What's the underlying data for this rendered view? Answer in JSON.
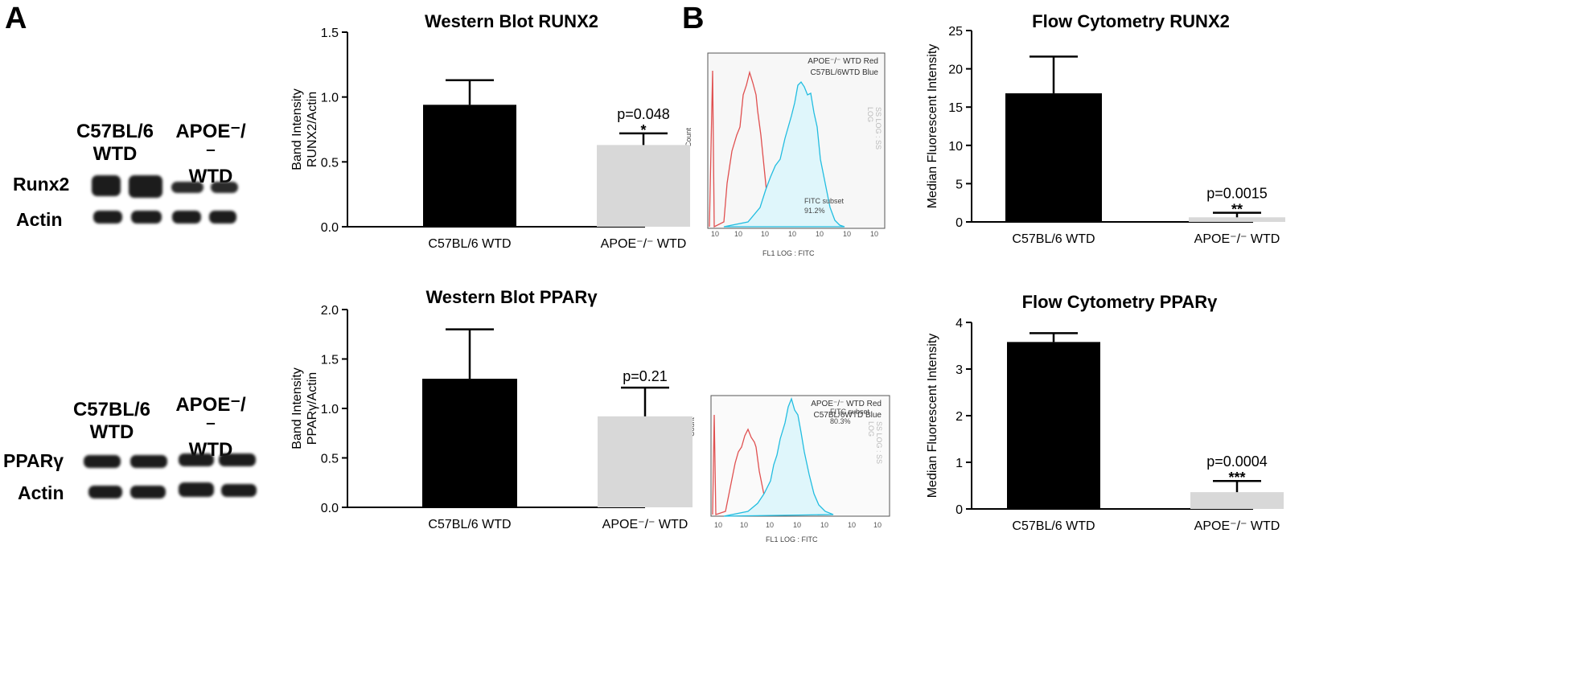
{
  "panels": {
    "a": "A",
    "b": "B"
  },
  "blots": [
    {
      "groups": [
        "C57BL/6\nWTD",
        "APOE⁻/⁻\nWTD"
      ],
      "rows": [
        "Runx2",
        "Actin"
      ]
    },
    {
      "groups": [
        "C57BL/6\nWTD",
        "APOE⁻/⁻\nWTD"
      ],
      "rows": [
        "PPARγ",
        "Actin"
      ]
    }
  ],
  "flow": [
    {
      "legend": [
        "APOE⁻/⁻ WTD Red",
        "C57BL/6WTD Blue"
      ],
      "subset": [
        "FITC subset",
        "91.2%"
      ],
      "ylabel": "Count",
      "xlabel": "FL1 LOG : FITC",
      "right_label": "SS LOG : SS LOG"
    },
    {
      "legend": [
        "APOE⁻/⁻ WTD Red",
        "C57BL/6WTD Blue"
      ],
      "subset": [
        "FITC subset",
        "80.3%"
      ],
      "ylabel": "Count",
      "xlabel": "FL1 LOG : FITC",
      "right_label": "SS LOG : SS LOG"
    }
  ],
  "chart_data": [
    {
      "type": "bar",
      "title": "Western Blot RUNX2",
      "ylabel": [
        "Band Intensity",
        "RUNX2/Actin"
      ],
      "categories": [
        "C57BL/6 WTD",
        "APOE⁻/⁻ WTD"
      ],
      "values": [
        0.94,
        0.63
      ],
      "errors": [
        0.19,
        0.09
      ],
      "colors": [
        "#000000",
        "#d8d8d8"
      ],
      "ylim": [
        0,
        1.5
      ],
      "yticks": [
        0,
        0.5,
        1.0,
        1.5
      ],
      "ytick_labels": [
        "0.0",
        "0.5",
        "1.0",
        "1.5"
      ],
      "annotation": {
        "index": 1,
        "pvalue": "p=0.048",
        "stars": "*"
      }
    },
    {
      "type": "bar",
      "title": "Flow Cytometry RUNX2",
      "ylabel": [
        "Median Fluorescent Intensity"
      ],
      "categories": [
        "C57BL/6 WTD",
        "APOE⁻/⁻ WTD"
      ],
      "values": [
        16.8,
        0.6
      ],
      "errors": [
        4.8,
        0.6
      ],
      "colors": [
        "#000000",
        "#d8d8d8"
      ],
      "ylim": [
        0,
        25
      ],
      "yticks": [
        0,
        5,
        10,
        15,
        20,
        25
      ],
      "ytick_labels": [
        "0",
        "5",
        "10",
        "15",
        "20",
        "25"
      ],
      "annotation": {
        "index": 1,
        "pvalue": "p=0.0015",
        "stars": "**"
      }
    },
    {
      "type": "bar",
      "title": "Western Blot PPARγ",
      "ylabel": [
        "Band Intensity",
        "PPARγ/Actin"
      ],
      "categories": [
        "C57BL/6 WTD",
        "APOE⁻/⁻ WTD"
      ],
      "values": [
        1.3,
        0.92
      ],
      "errors": [
        0.5,
        0.29
      ],
      "colors": [
        "#000000",
        "#d8d8d8"
      ],
      "ylim": [
        0,
        2.0
      ],
      "yticks": [
        0,
        0.5,
        1.0,
        1.5,
        2.0
      ],
      "ytick_labels": [
        "0.0",
        "0.5",
        "1.0",
        "1.5",
        "2.0"
      ],
      "annotation": {
        "index": 1,
        "pvalue": "p=0.21",
        "stars": ""
      }
    },
    {
      "type": "bar",
      "title": "Flow Cytometry PPARγ",
      "ylabel": [
        "Median Fluorescent Intensity"
      ],
      "categories": [
        "C57BL/6 WTD",
        "APOE⁻/⁻ WTD"
      ],
      "values": [
        3.58,
        0.36
      ],
      "errors": [
        0.19,
        0.24
      ],
      "colors": [
        "#000000",
        "#d8d8d8"
      ],
      "ylim": [
        0,
        4
      ],
      "yticks": [
        0,
        1,
        2,
        3,
        4
      ],
      "ytick_labels": [
        "0",
        "1",
        "2",
        "3",
        "4"
      ],
      "annotation": {
        "index": 1,
        "pvalue": "p=0.0004",
        "stars": "***"
      }
    }
  ]
}
